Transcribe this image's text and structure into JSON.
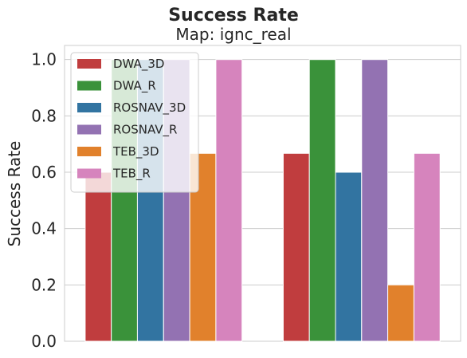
{
  "chart_data": {
    "type": "bar",
    "title": "Success Rate",
    "subtitle": "Map: ignc_real",
    "xlabel": "",
    "ylabel": "Success Rate",
    "ylim": [
      0,
      1.05
    ],
    "yticks": [
      "0.0",
      "0.2",
      "0.4",
      "0.6",
      "0.8",
      "1.0"
    ],
    "grid": true,
    "legend_position": "upper-left",
    "categories": [
      "",
      ""
    ],
    "series": [
      {
        "name": "DWA_3D",
        "color": "#c03d3e",
        "values": [
          0.6,
          0.667
        ]
      },
      {
        "name": "DWA_R",
        "color": "#3a923a",
        "values": [
          1.0,
          1.0
        ]
      },
      {
        "name": "ROSNAV_3D",
        "color": "#3274a1",
        "values": [
          1.0,
          0.6
        ]
      },
      {
        "name": "ROSNAV_R",
        "color": "#9372b2",
        "values": [
          1.0,
          1.0
        ]
      },
      {
        "name": "TEB_3D",
        "color": "#e1812c",
        "values": [
          0.667,
          0.2
        ]
      },
      {
        "name": "TEB_R",
        "color": "#d684bd",
        "values": [
          1.0,
          0.667
        ]
      }
    ]
  }
}
